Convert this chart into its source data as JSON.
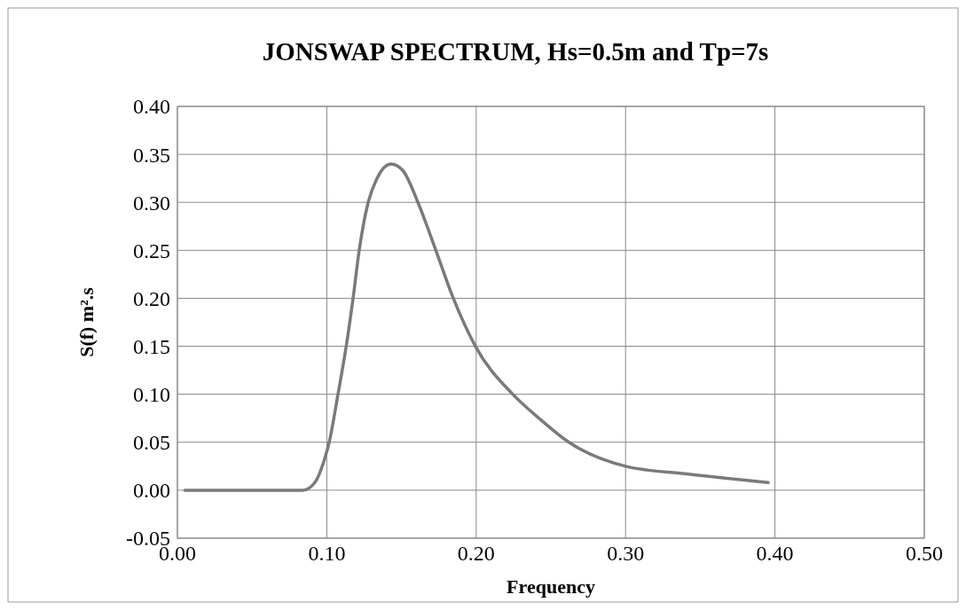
{
  "chart_data": {
    "type": "line",
    "title": "JONSWAP SPECTRUM, Hs=0.5m and Tp=7s",
    "xlabel": "Frequency",
    "ylabel": "S(f) m².s",
    "x": [
      0.005,
      0.084,
      0.092,
      0.098,
      0.1016,
      0.1075,
      0.113,
      0.1176,
      0.1217,
      0.1277,
      0.1336,
      0.143,
      0.151,
      0.161,
      0.173,
      0.1847,
      0.1995,
      0.2245,
      0.242,
      0.262,
      0.3,
      0.341,
      0.3955
    ],
    "series": [
      {
        "color": "#7a7a7a",
        "values": [
          0,
          0,
          0.008,
          0.03,
          0.05,
          0.1,
          0.15,
          0.2,
          0.25,
          0.3,
          0.325,
          0.34,
          0.333,
          0.3,
          0.25,
          0.2,
          0.15,
          0.1,
          0.075,
          0.05,
          0.025,
          0.017,
          0.008
        ]
      }
    ],
    "xlim": [
      0,
      0.5
    ],
    "xticks": [
      {
        "value": 0,
        "label": "0.00"
      },
      {
        "value": 0.1,
        "label": "0.10"
      },
      {
        "value": 0.2,
        "label": "0.20"
      },
      {
        "value": 0.3,
        "label": "0.30"
      },
      {
        "value": 0.4,
        "label": "0.40"
      },
      {
        "value": 0.5,
        "label": "0.50"
      }
    ],
    "ylim": [
      -0.05,
      0.4
    ],
    "yticks": [
      {
        "value": -0.05,
        "label": "-0.05"
      },
      {
        "value": 0,
        "label": "0.00"
      },
      {
        "value": 0.05,
        "label": "0.05"
      },
      {
        "value": 0.1,
        "label": "0.10"
      },
      {
        "value": 0.15,
        "label": "0.15"
      },
      {
        "value": 0.2,
        "label": "0.20"
      },
      {
        "value": 0.25,
        "label": "0.25"
      },
      {
        "value": 0.3,
        "label": "0.30"
      },
      {
        "value": 0.35,
        "label": "0.35"
      },
      {
        "value": 0.4,
        "label": "0.40"
      }
    ],
    "grid": true,
    "marker": "none",
    "line_style": "solid"
  }
}
